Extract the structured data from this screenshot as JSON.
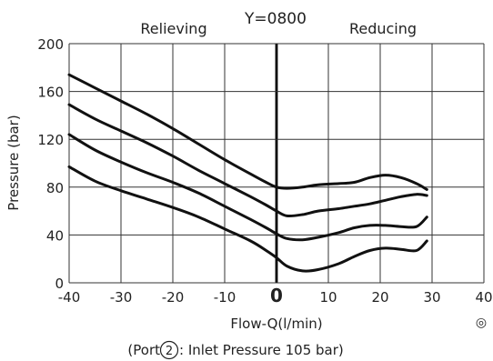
{
  "title": "Y=0800",
  "left_region_label": "Relieving",
  "right_region_label": "Reducing",
  "caption": {
    "before": "(Port ",
    "port": "2",
    "after": " : Inlet Pressure 105 bar)"
  },
  "symbol": "◎",
  "chart_data": {
    "type": "line",
    "title": "Y=0800",
    "xlabel": "Flow-Q(l/min)",
    "ylabel": "Pressure (bar)",
    "xlim": [
      -40,
      40
    ],
    "ylim": [
      0,
      200
    ],
    "xticks": [
      -40,
      -30,
      -20,
      -10,
      0,
      10,
      20,
      30,
      40
    ],
    "yticks": [
      0,
      40,
      80,
      120,
      160,
      200
    ],
    "grid": true,
    "zero_line_emphasis": true,
    "series": [
      {
        "x": [
          -40,
          -35,
          -30,
          -25,
          -20,
          -15,
          -10,
          -5,
          -2,
          0,
          2,
          5,
          8,
          12,
          15,
          18,
          21,
          24,
          27,
          29
        ],
        "y": [
          174,
          163,
          152,
          141,
          129,
          116,
          103,
          91,
          84,
          80,
          79,
          80,
          82,
          83,
          84,
          88,
          90,
          88,
          83,
          78
        ]
      },
      {
        "x": [
          -40,
          -35,
          -30,
          -25,
          -20,
          -15,
          -10,
          -5,
          -2,
          0,
          2,
          5,
          8,
          12,
          15,
          18,
          21,
          24,
          27,
          29
        ],
        "y": [
          149,
          137,
          127,
          117,
          106,
          94,
          83,
          72,
          65,
          60,
          56,
          57,
          60,
          62,
          64,
          66,
          69,
          72,
          74,
          73
        ]
      },
      {
        "x": [
          -40,
          -35,
          -30,
          -25,
          -20,
          -15,
          -10,
          -5,
          -2,
          0,
          2,
          5,
          8,
          12,
          15,
          18,
          21,
          24,
          27,
          29
        ],
        "y": [
          124,
          111,
          101,
          92,
          84,
          75,
          64,
          53,
          46,
          41,
          37,
          36,
          38,
          42,
          46,
          48,
          48,
          47,
          47,
          55
        ]
      },
      {
        "x": [
          -40,
          -35,
          -30,
          -25,
          -20,
          -15,
          -10,
          -5,
          -2,
          0,
          2,
          5,
          8,
          12,
          15,
          18,
          21,
          24,
          27,
          29
        ],
        "y": [
          97,
          85,
          77,
          70,
          63,
          55,
          45,
          35,
          27,
          21,
          14,
          10,
          11,
          16,
          22,
          27,
          29,
          28,
          27,
          35
        ]
      }
    ]
  }
}
